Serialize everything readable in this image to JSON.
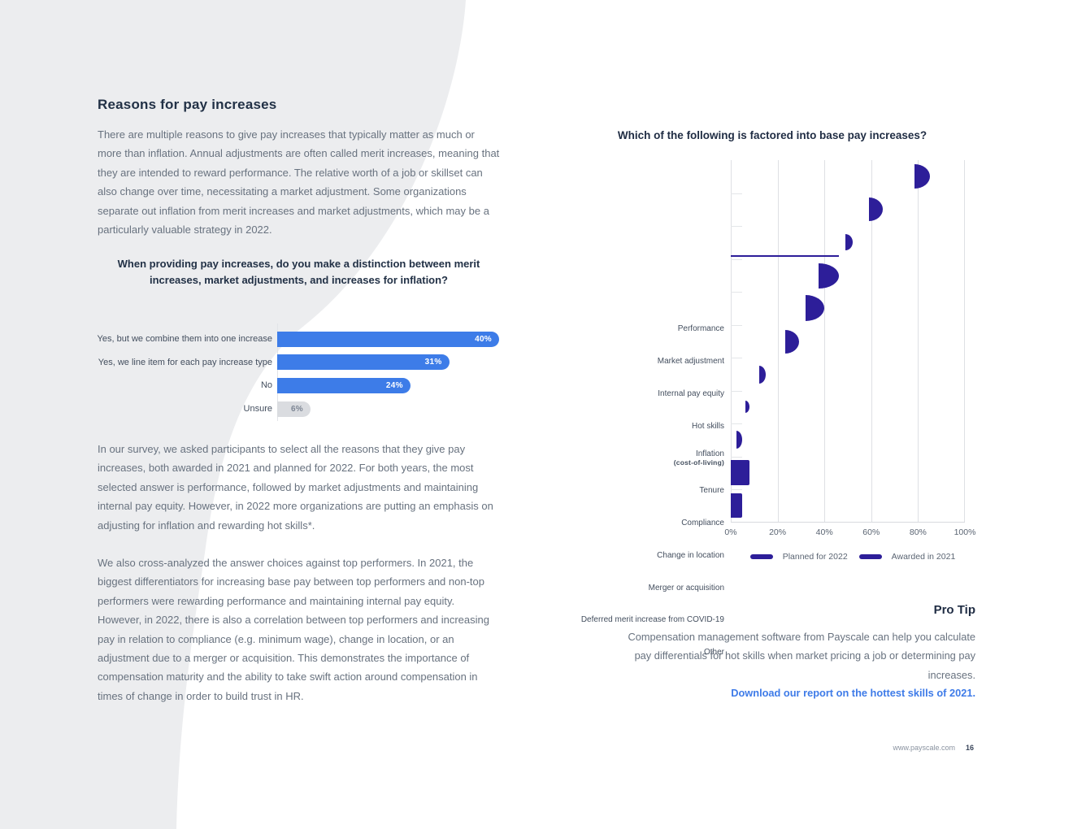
{
  "page": {
    "heading": "Reasons for pay increases",
    "paragraph_1": "There are multiple reasons to give pay increases that typically matter as much or more than inflation. Annual adjustments are often called merit increases, meaning that they are intended to reward performance. The relative worth of a job or skillset can also change over time, necessitating a market adjustment. Some organizations separate out inflation from merit increases and market adjustments, which may be a particularly valuable strategy in 2022.",
    "question": "When providing pay increases, do you make a distinction between merit increases, market adjustments, and increases for inflation?",
    "paragraph_2": "In our survey, we asked participants to select all the reasons that they give pay increases, both awarded in 2021 and planned for 2022. For both years, the most selected answer is performance, followed by market adjustments and maintaining internal pay equity. However, in 2022 more organizations are putting an emphasis on adjusting for inflation and rewarding hot skills*.",
    "paragraph_3": "We also cross-analyzed the answer choices against top performers. In 2021, the biggest differentiators for increasing base pay between top performers and non-top performers were rewarding performance and maintaining internal pay equity. However, in 2022, there is also a correlation between top performers and increasing pay in relation to compliance (e.g. minimum wage), change in location, or an adjustment due to a merger or acquisition. This demonstrates the importance of compensation maturity and the ability to take swift action around compensation in times of change in order to build trust in HR."
  },
  "pro_tip": {
    "heading": "Pro Tip",
    "text": "Compensation management software from Payscale can help you calculate pay differentials for hot skills when market pricing a job or determining pay increases.",
    "link": "Download our report on the hottest skills of 2021."
  },
  "footer": {
    "url": "www.payscale.com",
    "page_number": "16"
  },
  "colors": {
    "accent_blue": "#3D7CE8",
    "accent_purple": "#2D1E99",
    "link_blue": "#3E7BE8",
    "heading_navy": "#223146",
    "body_gray": "#68727F",
    "unsure_bar_gray": "#DADCE0",
    "swoosh_gray": "#ECEDEF"
  },
  "chart_data": [
    {
      "type": "bar",
      "orientation": "horizontal",
      "title": "When providing pay increases, do you make a distinction between merit increases, market adjustments, and increases for inflation?",
      "categories": [
        "Yes, but we combine them into one increase",
        "Yes, we line item for each pay increase type",
        "No",
        "Unsure"
      ],
      "values": [
        40,
        31,
        24,
        6
      ],
      "value_labels": [
        "40%",
        "31%",
        "24%",
        "6%"
      ],
      "bar_colors": [
        "#3D7CE8",
        "#3D7CE8",
        "#3D7CE8",
        "#DADCE0"
      ],
      "xlim": [
        0,
        41
      ],
      "grid": false,
      "legend_position": "none"
    },
    {
      "type": "bar",
      "orientation": "horizontal",
      "title": "Which of the following is factored into base pay increases?",
      "categories": [
        "Performance",
        "Market adjustment",
        "Internal pay equity",
        "Hot skills",
        "Inflation (cost-of-living)",
        "Tenure",
        "Compliance",
        "Change in location",
        "Merger or acquisition",
        "Deferred merit increase from COVID-19",
        "Other"
      ],
      "category_labels": [
        "Performance",
        "Market adjustment",
        "Internal pay equity",
        "Hot skills",
        "Inflation",
        "Tenure",
        "Compliance",
        "Change in location",
        "Merger or acquisition",
        "Deferred merit increase from COVID-19",
        "Other"
      ],
      "category_sublabels": [
        "",
        "",
        "",
        "",
        "(cost-of-living)",
        "",
        "",
        "",
        "",
        "",
        ""
      ],
      "series": [
        {
          "name": "Planned for 2022",
          "values": [
            85,
            65,
            52,
            46,
            40,
            29,
            15,
            8,
            5,
            8,
            5
          ]
        }
      ],
      "legend": [
        "Planned for 2022",
        "Awarded in 2021"
      ],
      "x_ticks": [
        "0%",
        "20%",
        "40%",
        "60%",
        "80%",
        "100%"
      ],
      "xlabel": "",
      "ylabel": "",
      "xlim": [
        0,
        100
      ],
      "grid": true,
      "legend_position": "bottom",
      "note": "Bars captured mid-animation: only the rounded right end caps of the bars are rendered at each value position."
    }
  ]
}
